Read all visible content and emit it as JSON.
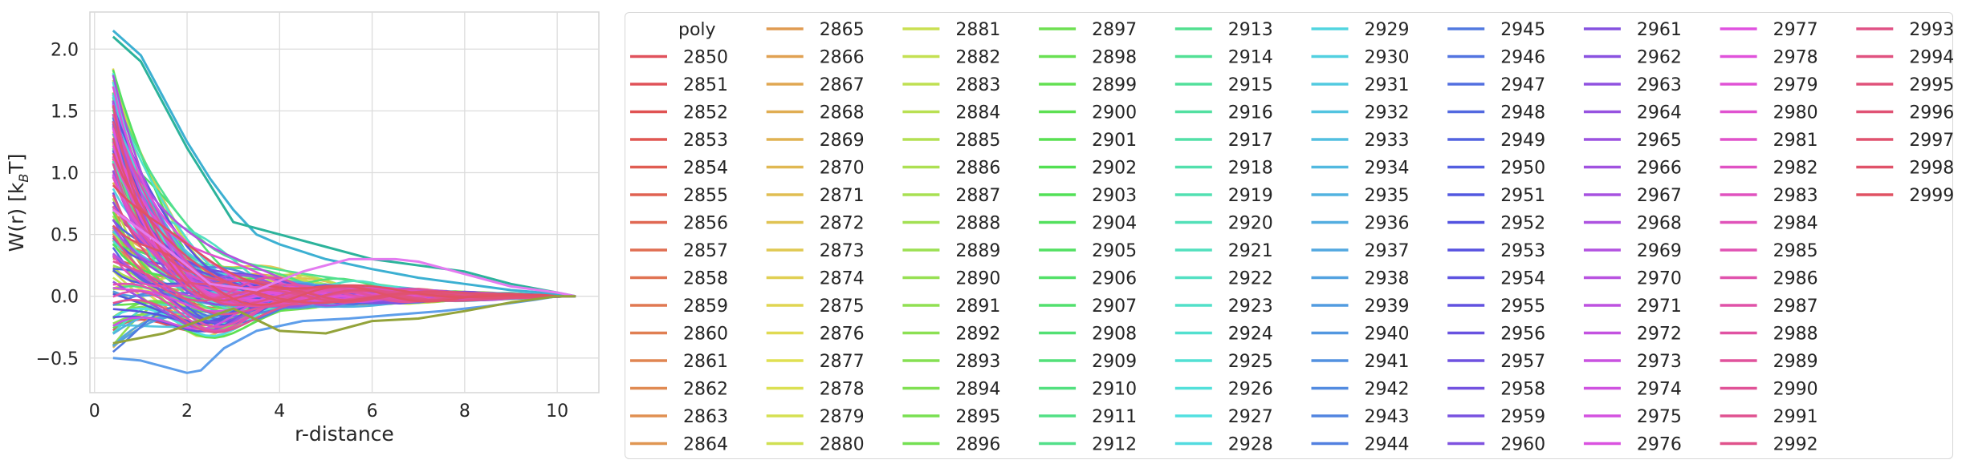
{
  "chart_data": {
    "type": "line",
    "xlabel": "r-distance",
    "ylabel": "W(r) [k",
    "ylabel_sub": "B",
    "ylabel_tail": "T]",
    "xlim": [
      -0.1,
      10.9
    ],
    "ylim": [
      -0.78,
      2.3
    ],
    "xticks": [
      0,
      2,
      4,
      6,
      8,
      10
    ],
    "yticks": [
      -0.5,
      0.0,
      0.5,
      1.0,
      1.5,
      2.0
    ],
    "xtick_labels": [
      "0",
      "2",
      "4",
      "6",
      "8",
      "10"
    ],
    "ytick_labels": [
      "−0.5",
      "0.0",
      "0.5",
      "1.0",
      "1.5",
      "2.0"
    ],
    "grid": true,
    "legend_title": "poly",
    "legend_placement": "outside-right",
    "series_range": [
      2850,
      2999
    ],
    "highlighted_series": [
      {
        "x": [
          0.4,
          1.0,
          1.5,
          2.0,
          2.3,
          2.8,
          3.5,
          4.5,
          5.5,
          6.5,
          7.5,
          8.5,
          9.5,
          10.0,
          10.4
        ],
        "y": [
          -0.5,
          -0.52,
          -0.57,
          -0.62,
          -0.6,
          -0.42,
          -0.28,
          -0.2,
          -0.18,
          -0.15,
          -0.12,
          -0.08,
          -0.03,
          0.0,
          0.0
        ]
      },
      {
        "x": [
          0.4,
          1.0,
          1.5,
          2.0,
          2.5,
          3.0,
          3.5,
          4.0,
          5.0,
          6.0,
          7.0,
          8.0,
          9.0,
          10.0,
          10.4
        ],
        "y": [
          2.15,
          1.95,
          1.6,
          1.25,
          0.95,
          0.7,
          0.5,
          0.42,
          0.3,
          0.22,
          0.15,
          0.1,
          0.05,
          0.02,
          0.0
        ]
      },
      {
        "x": [
          0.4,
          1.0,
          2.0,
          3.0,
          4.0,
          5.0,
          6.0,
          7.0,
          8.0,
          9.0,
          10.0,
          10.4
        ],
        "y": [
          2.1,
          1.9,
          1.2,
          0.6,
          0.5,
          0.4,
          0.3,
          0.25,
          0.2,
          0.1,
          0.03,
          0.0
        ]
      },
      {
        "x": [
          0.4,
          1.5,
          2.5,
          3.5,
          4.5,
          5.5,
          6.5,
          7.0,
          8.0,
          9.0,
          10.0,
          10.4
        ],
        "y": [
          0.7,
          0.4,
          0.1,
          0.05,
          0.2,
          0.3,
          0.3,
          0.28,
          0.18,
          0.08,
          0.03,
          0.0
        ]
      },
      {
        "x": [
          0.4,
          1.5,
          3.0,
          4.0,
          5.0,
          6.0,
          7.0,
          8.0,
          9.0,
          10.0,
          10.4
        ],
        "y": [
          -0.38,
          -0.3,
          -0.1,
          -0.28,
          -0.3,
          -0.2,
          -0.18,
          -0.12,
          -0.05,
          0.0,
          0.0
        ]
      }
    ]
  }
}
